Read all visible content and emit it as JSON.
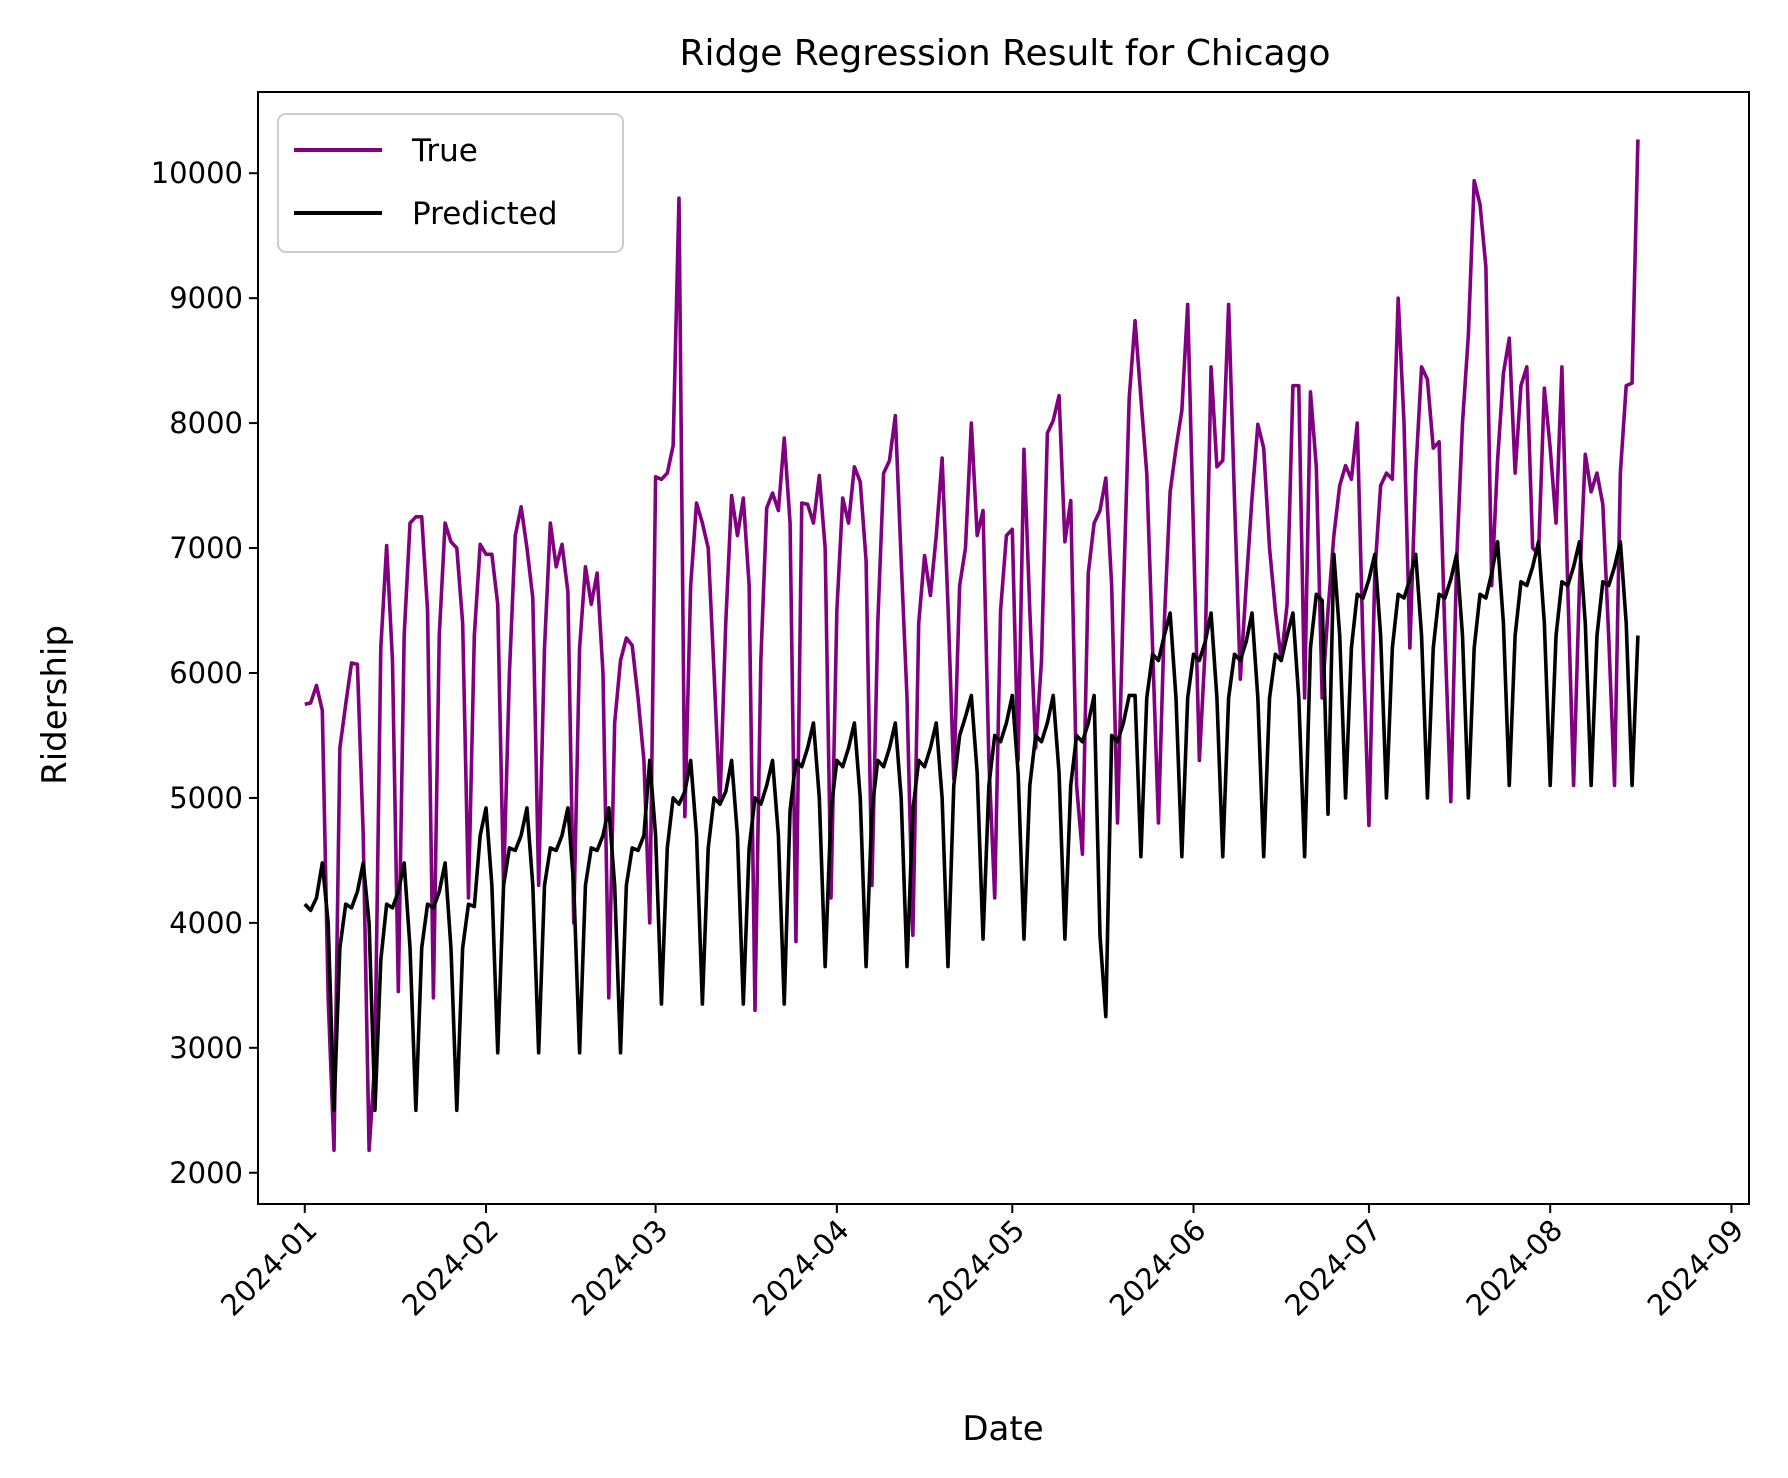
{
  "chart_data": {
    "type": "line",
    "title": "Ridge Regression Result for Chicago",
    "xlabel": "Date",
    "ylabel": "Ridership",
    "x_axis_type": "date",
    "x_start": "2024-01-01",
    "x_step_days": 7,
    "xlim": [
      "2023-12-24",
      "2024-09-04"
    ],
    "xticks": [
      "2024-01-01",
      "2024-02-01",
      "2024-03-01",
      "2024-04-01",
      "2024-05-01",
      "2024-06-01",
      "2024-07-01",
      "2024-08-01",
      "2024-09-01"
    ],
    "xtick_labels": [
      "2024-01",
      "2024-02",
      "2024-03",
      "2024-04",
      "2024-05",
      "2024-06",
      "2024-07",
      "2024-08",
      "2024-09"
    ],
    "ylim": [
      1750,
      10650
    ],
    "yticks": [
      2000,
      3000,
      4000,
      5000,
      6000,
      7000,
      8000,
      9000,
      10000
    ],
    "ytick_labels": [
      "2000",
      "3000",
      "4000",
      "5000",
      "6000",
      "7000",
      "8000",
      "9000",
      "10000"
    ],
    "grid": false,
    "legend_position": "top-left",
    "series": [
      {
        "name": "True",
        "color": "#800080",
        "weekly_pattern": [
          [
            5750,
            5760,
            5900,
            5700,
            3400,
            2180,
            5400
          ],
          [
            5750,
            6080,
            6070,
            4700,
            2180,
            2900,
            6200
          ],
          [
            7020,
            6100,
            3450,
            6300,
            7200,
            7250,
            7250
          ],
          [
            6500,
            3400,
            6300,
            7200,
            7050,
            7000,
            6400
          ],
          [
            4200,
            6300,
            7030,
            6950,
            6950,
            6550,
            4300
          ],
          [
            6000,
            7100,
            7330,
            7000,
            6600,
            4300,
            6200
          ],
          [
            7200,
            6850,
            7030,
            6650,
            4000,
            6200,
            6850
          ],
          [
            6550,
            6800,
            6000,
            3400,
            5600,
            6100,
            6280
          ],
          [
            6220,
            5800,
            5300,
            4000,
            7570,
            7550,
            7600
          ],
          [
            7820,
            9800,
            4850,
            6700,
            7360,
            7200,
            7000
          ],
          [
            6000,
            4950,
            6400,
            7420,
            7100,
            7400,
            6700
          ],
          [
            3300,
            6100,
            7320,
            7440,
            7300,
            7880,
            7200
          ],
          [
            3850,
            7360,
            7350,
            7200,
            7580,
            7000,
            4200
          ],
          [
            6500,
            7400,
            7200,
            7650,
            7530,
            6900,
            4300
          ],
          [
            6400,
            7600,
            7700,
            8060,
            6900,
            5800,
            3900
          ],
          [
            6400,
            6940,
            6620,
            7100,
            7720,
            6550,
            5150
          ],
          [
            6700,
            7000,
            8000,
            7100,
            7300,
            5300,
            4200
          ],
          [
            6500,
            7100,
            7150,
            5300,
            7790,
            6500,
            5400
          ],
          [
            6100,
            7920,
            8020,
            8220,
            7050,
            7380,
            5100
          ],
          [
            4550,
            6800,
            7200,
            7300,
            7560,
            6700,
            4800
          ],
          [
            6600,
            8200,
            8820,
            8200,
            7600,
            6200,
            4800
          ],
          [
            6400,
            7450,
            7800,
            8100,
            8950,
            7100,
            5300
          ],
          [
            6200,
            8450,
            7650,
            7700,
            8950,
            7400,
            5950
          ],
          [
            6700,
            7400,
            7990,
            7800,
            7000,
            6500,
            6100
          ],
          [
            6550,
            8300,
            8300,
            5800,
            8250,
            7650,
            5800
          ],
          [
            6500,
            7100,
            7500,
            7660,
            7550,
            8000,
            6200
          ],
          [
            4780,
            6800,
            7500,
            7600,
            7550,
            9000,
            8000
          ],
          [
            6200,
            7600,
            8450,
            8350,
            7800,
            7850,
            6300
          ],
          [
            4970,
            6900,
            8000,
            8700,
            9940,
            9750,
            9250
          ],
          [
            6700,
            7700,
            8400,
            8680,
            7600,
            8300,
            8450
          ],
          [
            7000,
            6950,
            8280,
            7800,
            7200,
            8450,
            6700
          ],
          [
            5100,
            6700,
            7750,
            7450,
            7600,
            7350,
            6300
          ],
          [
            5100,
            7600,
            8300,
            8320,
            10270,
            8450,
            8420
          ]
        ],
        "length": 229
      },
      {
        "name": "Predicted",
        "color": "#000000",
        "weekly_pattern": [
          [
            4150,
            4100,
            4200,
            4480,
            4000,
            2500,
            3800
          ],
          [
            4150,
            4120,
            4250,
            4480,
            4000,
            2500,
            3700
          ],
          [
            4150,
            4120,
            4250,
            4480,
            3800,
            2500,
            3800
          ],
          [
            4150,
            4120,
            4250,
            4480,
            3800,
            2500,
            3800
          ],
          [
            4150,
            4130,
            4700,
            4920,
            4300,
            2960,
            4300
          ],
          [
            4600,
            4580,
            4700,
            4920,
            4300,
            2960,
            4300
          ],
          [
            4600,
            4580,
            4700,
            4920,
            4300,
            2960,
            4300
          ],
          [
            4600,
            4580,
            4700,
            4920,
            4300,
            2960,
            4300
          ],
          [
            4600,
            4580,
            4700,
            5300,
            4700,
            3350,
            4600
          ],
          [
            5000,
            4950,
            5050,
            5300,
            4700,
            3350,
            4600
          ],
          [
            5000,
            4950,
            5050,
            5300,
            4700,
            3350,
            4600
          ],
          [
            5000,
            4950,
            5100,
            5300,
            4700,
            3350,
            4900
          ],
          [
            5300,
            5250,
            5400,
            5600,
            5000,
            3650,
            4900
          ],
          [
            5300,
            5250,
            5400,
            5600,
            5000,
            3650,
            4900
          ],
          [
            5300,
            5250,
            5400,
            5600,
            5000,
            3650,
            4900
          ],
          [
            5300,
            5250,
            5400,
            5600,
            5000,
            3650,
            5100
          ],
          [
            5500,
            5650,
            5820,
            5200,
            3870,
            5100,
            5500
          ],
          [
            5450,
            5600,
            5820,
            5200,
            3870,
            5100,
            5500
          ],
          [
            5450,
            5600,
            5820,
            5200,
            3870,
            5100,
            5500
          ],
          [
            5450,
            5600,
            5820,
            3900,
            3250,
            5500,
            5450
          ],
          [
            5600,
            5820,
            5820,
            4530,
            5800,
            6150,
            6100
          ],
          [
            6300,
            6480,
            5800,
            4530,
            5800,
            6150,
            6100
          ],
          [
            6250,
            6480,
            5800,
            4530,
            5800,
            6150,
            6100
          ],
          [
            6250,
            6480,
            5800,
            4530,
            5800,
            6150,
            6100
          ],
          [
            6300,
            6480,
            5800,
            4530,
            6200,
            6630,
            6580
          ],
          [
            4870,
            6950,
            6300,
            5000,
            6200,
            6630,
            6600
          ],
          [
            6750,
            6950,
            6300,
            5000,
            6200,
            6630,
            6600
          ],
          [
            6750,
            6950,
            6300,
            5000,
            6200,
            6630,
            6600
          ],
          [
            6750,
            6950,
            6300,
            5000,
            6200,
            6630,
            6600
          ],
          [
            6800,
            7050,
            6400,
            5100,
            6300,
            6730,
            6700
          ],
          [
            6850,
            7050,
            6400,
            5100,
            6300,
            6730,
            6700
          ],
          [
            6850,
            7050,
            6400,
            5100,
            6300,
            6730,
            6700
          ],
          [
            6850,
            7050,
            6400,
            5100,
            6300,
            6730,
            6700
          ]
        ],
        "length": 229
      }
    ]
  }
}
